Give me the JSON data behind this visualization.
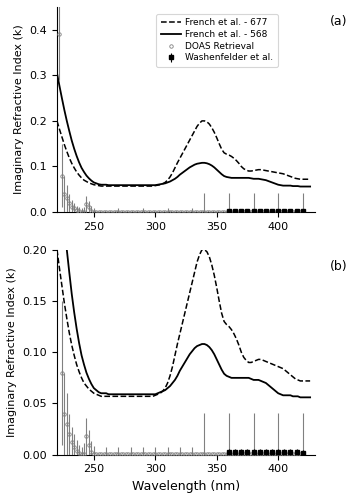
{
  "title_a": "(a)",
  "title_b": "(b)",
  "ylabel": "Imaginary Refractive Index (k)",
  "xlabel": "Wavelength (nm)",
  "ylim_a": [
    0,
    0.45
  ],
  "ylim_b": [
    0,
    0.2
  ],
  "xlim": [
    220,
    430
  ],
  "yticks_a": [
    0.0,
    0.1,
    0.2,
    0.3,
    0.4
  ],
  "yticks_b": [
    0.0,
    0.05,
    0.1,
    0.15,
    0.2
  ],
  "xticks": [
    250,
    300,
    350,
    400
  ],
  "legend_entries": [
    "DOAS Retrieval",
    "Washenfelder et al.",
    "French et al. - 677",
    "French et al. - 568"
  ],
  "french677_wl": [
    220,
    222,
    224,
    226,
    228,
    230,
    232,
    234,
    236,
    238,
    240,
    242,
    244,
    246,
    248,
    250,
    252,
    254,
    256,
    258,
    260,
    262,
    264,
    266,
    268,
    270,
    272,
    274,
    276,
    278,
    280,
    282,
    284,
    286,
    288,
    290,
    292,
    294,
    296,
    298,
    300,
    302,
    304,
    306,
    308,
    310,
    312,
    314,
    316,
    318,
    320,
    322,
    324,
    326,
    328,
    330,
    332,
    334,
    336,
    338,
    340,
    342,
    344,
    346,
    348,
    350,
    352,
    354,
    356,
    358,
    360,
    362,
    364,
    366,
    368,
    370,
    372,
    374,
    376,
    378,
    380,
    382,
    384,
    386,
    388,
    390,
    392,
    394,
    396,
    398,
    400,
    402,
    404,
    406,
    408,
    410,
    412,
    414,
    416,
    418,
    420,
    422,
    424,
    426
  ],
  "french677_k": [
    0.2,
    0.182,
    0.165,
    0.148,
    0.133,
    0.119,
    0.107,
    0.097,
    0.088,
    0.081,
    0.075,
    0.07,
    0.067,
    0.064,
    0.062,
    0.06,
    0.059,
    0.058,
    0.057,
    0.057,
    0.057,
    0.057,
    0.057,
    0.057,
    0.057,
    0.057,
    0.057,
    0.057,
    0.057,
    0.057,
    0.057,
    0.057,
    0.057,
    0.057,
    0.057,
    0.057,
    0.057,
    0.057,
    0.057,
    0.057,
    0.058,
    0.059,
    0.06,
    0.062,
    0.065,
    0.07,
    0.077,
    0.086,
    0.097,
    0.108,
    0.118,
    0.128,
    0.138,
    0.148,
    0.158,
    0.168,
    0.178,
    0.188,
    0.195,
    0.2,
    0.2,
    0.198,
    0.193,
    0.185,
    0.175,
    0.163,
    0.15,
    0.138,
    0.13,
    0.127,
    0.125,
    0.122,
    0.118,
    0.113,
    0.107,
    0.1,
    0.095,
    0.092,
    0.09,
    0.09,
    0.091,
    0.092,
    0.093,
    0.093,
    0.092,
    0.091,
    0.09,
    0.089,
    0.088,
    0.087,
    0.086,
    0.085,
    0.084,
    0.082,
    0.08,
    0.078,
    0.076,
    0.074,
    0.073,
    0.072,
    0.072,
    0.072,
    0.072,
    0.072
  ],
  "french568_wl": [
    220,
    222,
    224,
    226,
    228,
    230,
    232,
    234,
    236,
    238,
    240,
    242,
    244,
    246,
    248,
    250,
    252,
    254,
    256,
    258,
    260,
    262,
    264,
    266,
    268,
    270,
    272,
    274,
    276,
    278,
    280,
    282,
    284,
    286,
    288,
    290,
    292,
    294,
    296,
    298,
    300,
    302,
    304,
    306,
    308,
    310,
    312,
    314,
    316,
    318,
    320,
    322,
    324,
    326,
    328,
    330,
    332,
    334,
    336,
    338,
    340,
    342,
    344,
    346,
    348,
    350,
    352,
    354,
    356,
    358,
    360,
    362,
    364,
    366,
    368,
    370,
    372,
    374,
    376,
    378,
    380,
    382,
    384,
    386,
    388,
    390,
    392,
    394,
    396,
    398,
    400,
    402,
    404,
    406,
    408,
    410,
    412,
    414,
    416,
    418,
    420,
    422,
    424,
    426
  ],
  "french568_k": [
    0.305,
    0.277,
    0.25,
    0.224,
    0.2,
    0.178,
    0.157,
    0.139,
    0.123,
    0.109,
    0.097,
    0.088,
    0.08,
    0.074,
    0.069,
    0.065,
    0.063,
    0.061,
    0.06,
    0.06,
    0.06,
    0.059,
    0.059,
    0.059,
    0.059,
    0.059,
    0.059,
    0.059,
    0.059,
    0.059,
    0.059,
    0.059,
    0.059,
    0.059,
    0.059,
    0.059,
    0.059,
    0.059,
    0.059,
    0.059,
    0.059,
    0.06,
    0.061,
    0.062,
    0.063,
    0.065,
    0.067,
    0.07,
    0.073,
    0.077,
    0.082,
    0.086,
    0.09,
    0.094,
    0.098,
    0.101,
    0.104,
    0.106,
    0.107,
    0.108,
    0.108,
    0.107,
    0.105,
    0.102,
    0.098,
    0.093,
    0.088,
    0.083,
    0.079,
    0.077,
    0.076,
    0.075,
    0.075,
    0.075,
    0.075,
    0.075,
    0.075,
    0.075,
    0.075,
    0.074,
    0.073,
    0.073,
    0.073,
    0.072,
    0.071,
    0.07,
    0.068,
    0.066,
    0.064,
    0.062,
    0.06,
    0.059,
    0.058,
    0.058,
    0.058,
    0.058,
    0.057,
    0.057,
    0.057,
    0.056,
    0.056,
    0.056,
    0.056,
    0.056
  ],
  "doas_wl": [
    222,
    224,
    226,
    228,
    230,
    232,
    234,
    236,
    238,
    240,
    242,
    244,
    246,
    248,
    250,
    252,
    254,
    256,
    258,
    260,
    262,
    264,
    266,
    268,
    270,
    272,
    274,
    276,
    278,
    280,
    282,
    284,
    286,
    288,
    290,
    292,
    294,
    296,
    298,
    300,
    302,
    304,
    306,
    308,
    310,
    312,
    314,
    316,
    318,
    320,
    322,
    324,
    326,
    328,
    330,
    332,
    334,
    336,
    338,
    340,
    342,
    344,
    346,
    348,
    350,
    352,
    354,
    356,
    358,
    360,
    362,
    364,
    366,
    368,
    370,
    372,
    374,
    376,
    378,
    380,
    382,
    384,
    386,
    388,
    390,
    392,
    394,
    396,
    398,
    400,
    402,
    404,
    406,
    408,
    410,
    412,
    414,
    416,
    418,
    420
  ],
  "doas_k": [
    0.39,
    0.08,
    0.04,
    0.03,
    0.02,
    0.012,
    0.008,
    0.004,
    0.002,
    0.001,
    0.001,
    0.018,
    0.01,
    0.003,
    0.001,
    0.001,
    0.001,
    0.001,
    0.001,
    0.001,
    0.001,
    0.001,
    0.001,
    0.001,
    0.001,
    0.001,
    0.001,
    0.001,
    0.001,
    0.001,
    0.001,
    0.001,
    0.001,
    0.001,
    0.001,
    0.001,
    0.001,
    0.001,
    0.001,
    0.001,
    0.001,
    0.001,
    0.001,
    0.001,
    0.001,
    0.001,
    0.001,
    0.001,
    0.001,
    0.001,
    0.001,
    0.001,
    0.001,
    0.001,
    0.001,
    0.001,
    0.001,
    0.001,
    0.001,
    0.001,
    0.001,
    0.001,
    0.001,
    0.001,
    0.001,
    0.001,
    0.001,
    0.001,
    0.001,
    0.001,
    0.001,
    0.001,
    0.001,
    0.001,
    0.001,
    0.001,
    0.001,
    0.001,
    0.001,
    0.001,
    0.001,
    0.001,
    0.001,
    0.001,
    0.001,
    0.001,
    0.001,
    0.001,
    0.001,
    0.001,
    0.001,
    0.001,
    0.001,
    0.001,
    0.001,
    0.001,
    0.001,
    0.001,
    0.001,
    0.001
  ],
  "doas_err": [
    0.1,
    0.07,
    0.04,
    0.03,
    0.02,
    0.015,
    0.012,
    0.01,
    0.008,
    0.007,
    0.01,
    0.018,
    0.014,
    0.01,
    0.008,
    0.007,
    0.007,
    0.007,
    0.007,
    0.007,
    0.007,
    0.007,
    0.007,
    0.007,
    0.007,
    0.007,
    0.007,
    0.007,
    0.007,
    0.007,
    0.007,
    0.007,
    0.007,
    0.007,
    0.007,
    0.007,
    0.007,
    0.007,
    0.007,
    0.007,
    0.007,
    0.007,
    0.007,
    0.007,
    0.007,
    0.007,
    0.007,
    0.007,
    0.007,
    0.007,
    0.007,
    0.007,
    0.007,
    0.007,
    0.007,
    0.007,
    0.007,
    0.007,
    0.007,
    0.04,
    0.04,
    0.04,
    0.04,
    0.04,
    0.04,
    0.04,
    0.04,
    0.04,
    0.04,
    0.04,
    0.04,
    0.04,
    0.04,
    0.04,
    0.04,
    0.04,
    0.04,
    0.04,
    0.04,
    0.04,
    0.04,
    0.04,
    0.04,
    0.04,
    0.04,
    0.04,
    0.04,
    0.04,
    0.04,
    0.04,
    0.04,
    0.04,
    0.04,
    0.04,
    0.04,
    0.04,
    0.04,
    0.04,
    0.04,
    0.04
  ],
  "wash_wl": [
    360,
    365,
    370,
    375,
    380,
    385,
    390,
    395,
    400,
    405,
    410,
    415,
    420
  ],
  "wash_k": [
    0.003,
    0.003,
    0.003,
    0.003,
    0.003,
    0.003,
    0.003,
    0.003,
    0.003,
    0.003,
    0.003,
    0.003,
    0.002
  ],
  "wash_err": [
    0.003,
    0.003,
    0.003,
    0.003,
    0.003,
    0.003,
    0.003,
    0.003,
    0.003,
    0.003,
    0.003,
    0.003,
    0.003
  ],
  "errbar_indices_a": [
    0,
    1,
    2,
    3,
    4,
    5,
    6,
    7,
    8,
    9,
    10,
    11,
    12,
    13,
    14,
    24,
    34,
    44,
    54,
    59,
    69,
    79,
    89,
    99
  ],
  "errbar_indices_b": [
    0,
    1,
    2,
    3,
    4,
    5,
    6,
    7,
    8,
    9,
    10,
    11,
    12,
    13,
    14,
    19,
    24,
    29,
    34,
    39,
    44,
    49,
    54,
    59,
    69,
    79,
    89,
    99
  ]
}
